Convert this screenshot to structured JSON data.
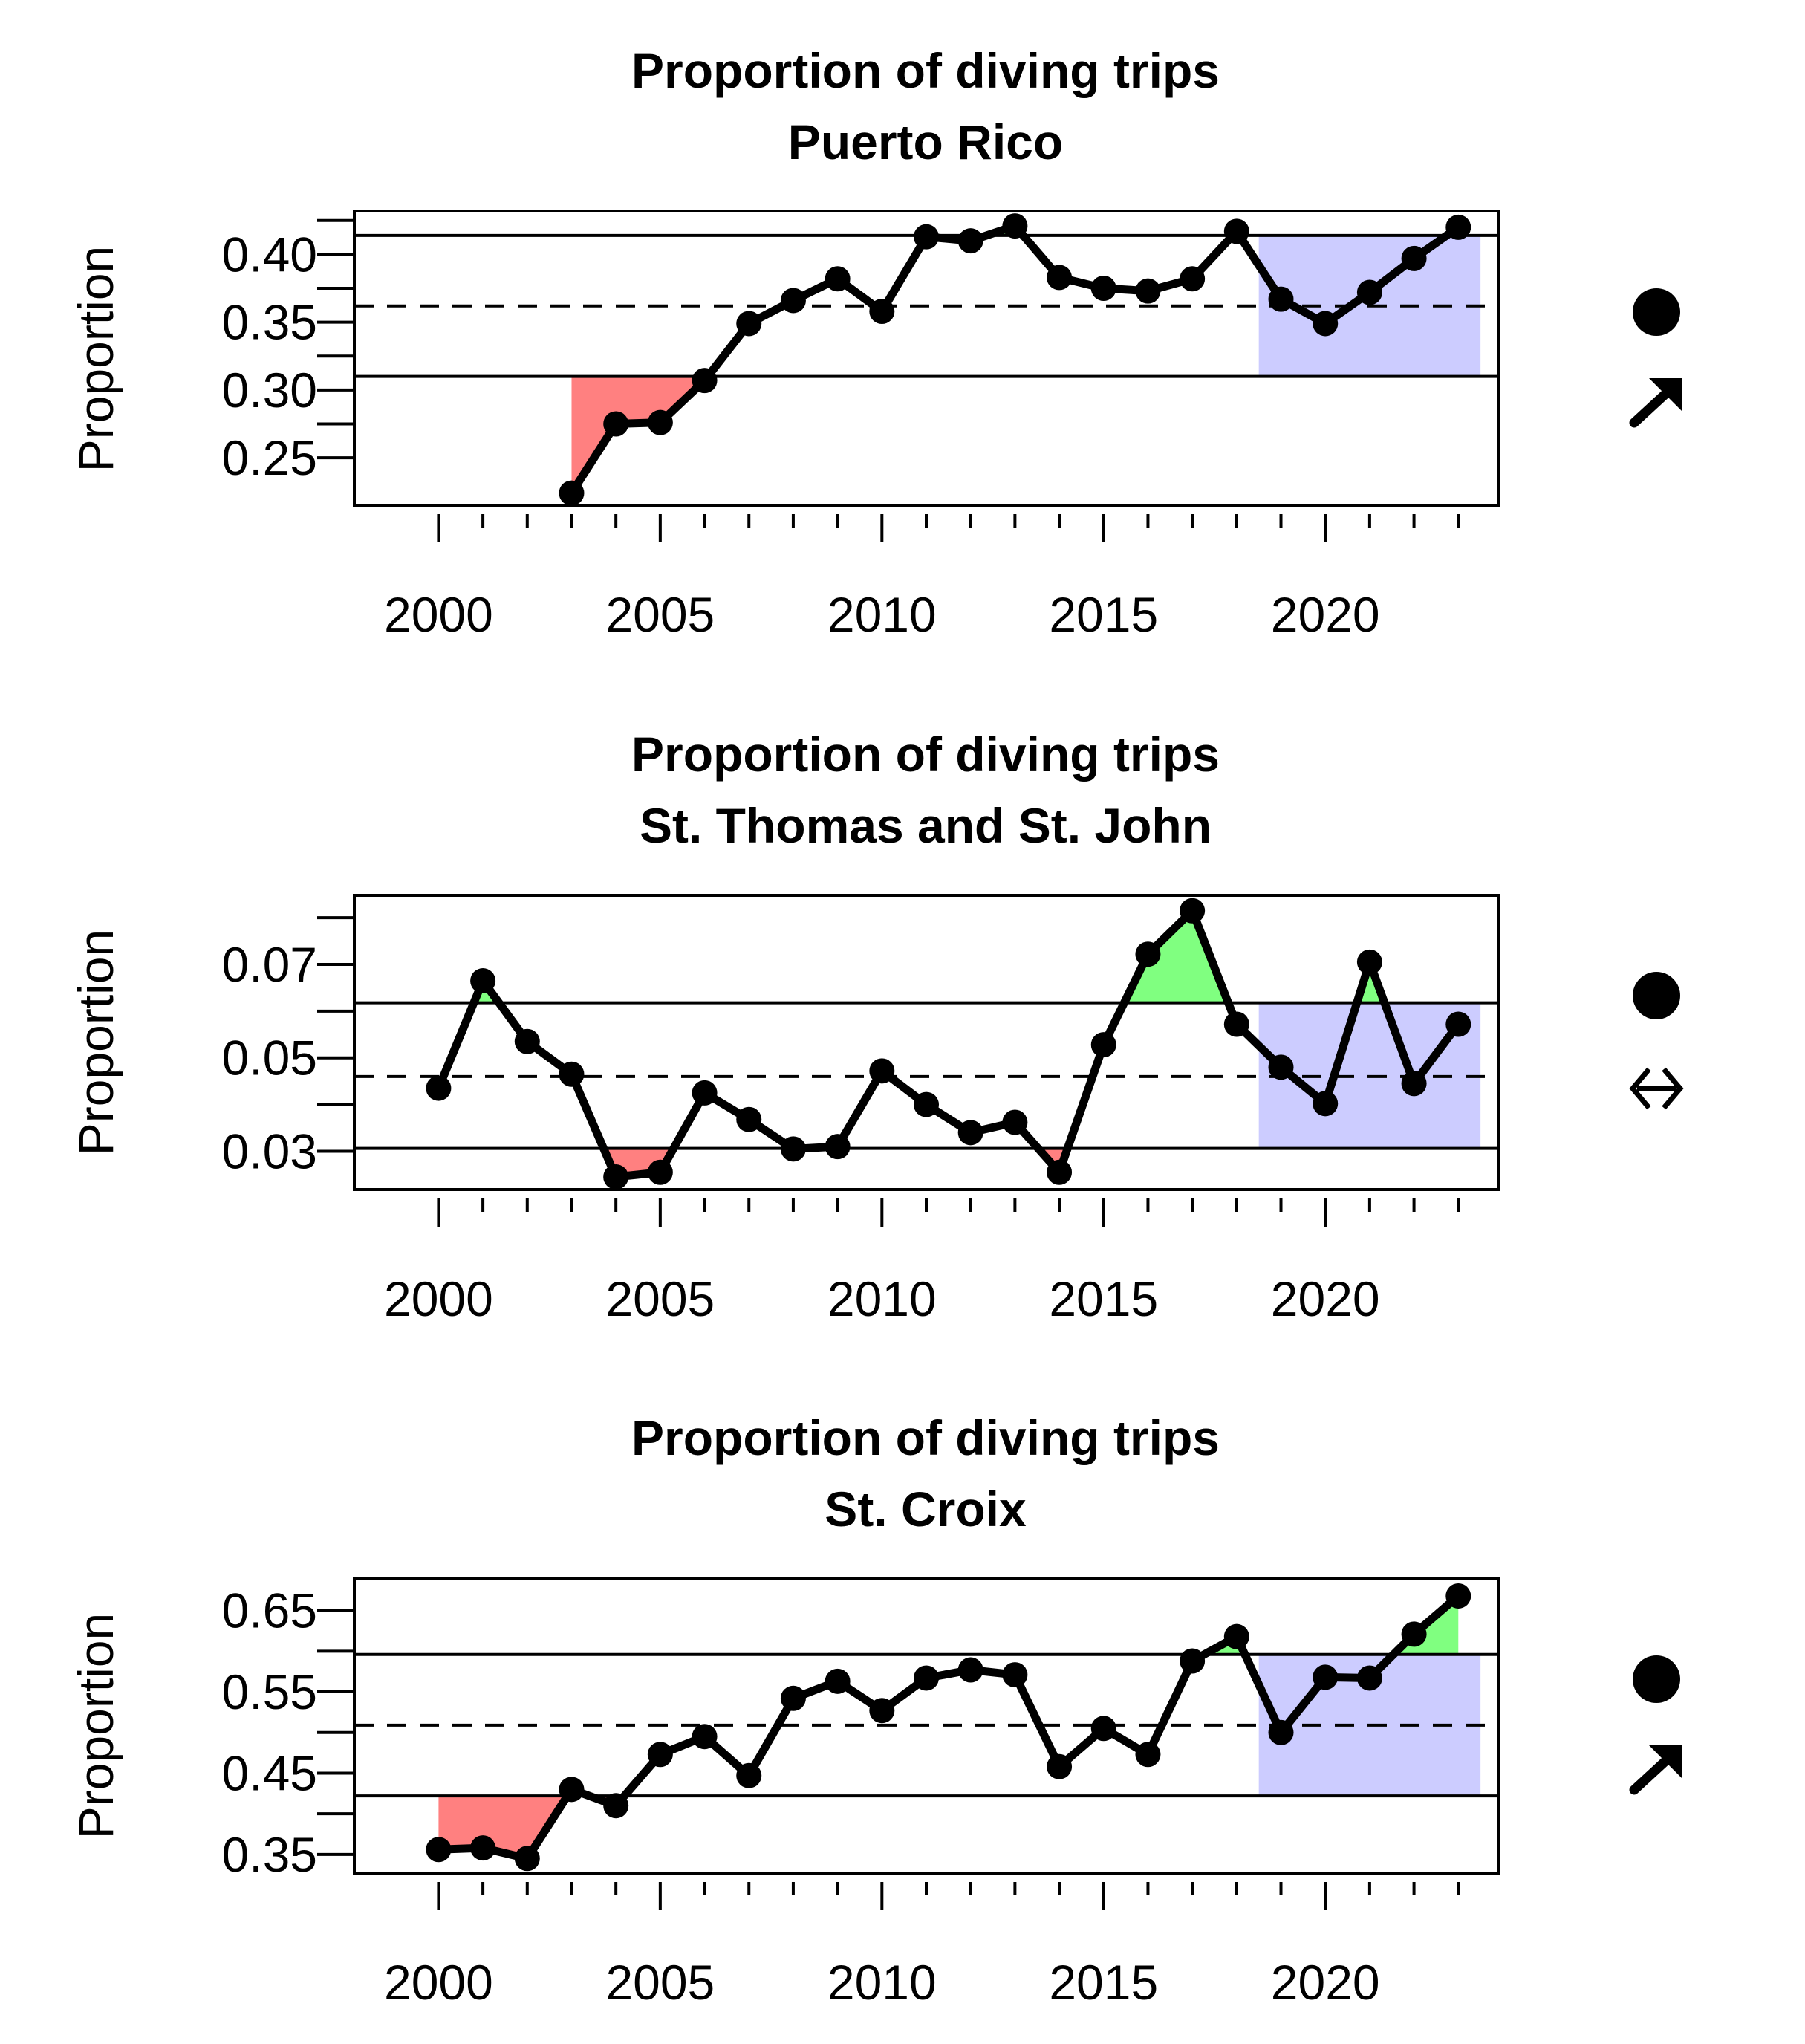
{
  "chart_data": [
    {
      "type": "line",
      "title": "Proportion of diving trips",
      "subtitle": "Puerto Rico",
      "ylabel": "Proportion",
      "xlabel": "",
      "x": [
        2003,
        2004,
        2005,
        2006,
        2007,
        2008,
        2009,
        2010,
        2011,
        2012,
        2013,
        2014,
        2015,
        2016,
        2017,
        2018,
        2019,
        2020,
        2021,
        2022,
        2023
      ],
      "series": [
        {
          "values": [
            0.224,
            0.275,
            0.276,
            0.307,
            0.349,
            0.366,
            0.382,
            0.358,
            0.413,
            0.41,
            0.421,
            0.383,
            0.375,
            0.373,
            0.382,
            0.417,
            0.367,
            0.349,
            0.372,
            0.397,
            0.42
          ]
        }
      ],
      "mean": 0.362,
      "upper": 0.414,
      "lower": 0.31,
      "xlim": [
        1998.1,
        2023.9
      ],
      "ylim": [
        0.215,
        0.432
      ],
      "xticks": [
        2000,
        2005,
        2010,
        2015,
        2020
      ],
      "xminor": [
        2001,
        2002,
        2003,
        2004,
        2006,
        2007,
        2008,
        2009,
        2011,
        2012,
        2013,
        2014,
        2016,
        2017,
        2018,
        2019,
        2021,
        2022,
        2023
      ],
      "yticks": [
        "0.25",
        "0.30",
        "0.35",
        "0.40"
      ],
      "ytick_values": [
        0.25,
        0.3,
        0.35,
        0.4
      ],
      "yminor": [
        0.275,
        0.325,
        0.375,
        0.425
      ],
      "recent_window": [
        2018.5,
        2023.5
      ],
      "status_icons": [
        "filled-circle-icon",
        "arrow-up-right-icon"
      ]
    },
    {
      "type": "line",
      "title": "Proportion of diving trips",
      "subtitle": "St. Thomas and St. John",
      "ylabel": "Proportion",
      "xlabel": "",
      "x": [
        2000,
        2001,
        2002,
        2003,
        2004,
        2005,
        2006,
        2007,
        2008,
        2009,
        2010,
        2011,
        2012,
        2013,
        2014,
        2015,
        2016,
        2017,
        2018,
        2019,
        2020,
        2021,
        2022,
        2023
      ],
      "series": [
        {
          "values": [
            0.0435,
            0.0665,
            0.0535,
            0.0465,
            0.0245,
            0.0255,
            0.0425,
            0.0368,
            0.0305,
            0.031,
            0.0472,
            0.04,
            0.034,
            0.0362,
            0.0255,
            0.0528,
            0.0722,
            0.0815,
            0.0572,
            0.048,
            0.0402,
            0.0705,
            0.0445,
            0.0572
          ]
        }
      ],
      "mean": 0.046,
      "upper": 0.0618,
      "lower": 0.0306,
      "xlim": [
        1998.1,
        2023.9
      ],
      "ylim": [
        0.0218,
        0.0848
      ],
      "xticks": [
        2000,
        2005,
        2010,
        2015,
        2020
      ],
      "xminor": [
        2001,
        2002,
        2003,
        2004,
        2006,
        2007,
        2008,
        2009,
        2011,
        2012,
        2013,
        2014,
        2016,
        2017,
        2018,
        2019,
        2021,
        2022,
        2023
      ],
      "yticks": [
        "0.03",
        "0.05",
        "0.07"
      ],
      "ytick_values": [
        0.03,
        0.05,
        0.07
      ],
      "yminor": [
        0.04,
        0.06,
        0.08
      ],
      "recent_window": [
        2018.5,
        2023.5
      ],
      "status_icons": [
        "filled-circle-icon",
        "double-arrow-horizontal-icon"
      ]
    },
    {
      "type": "line",
      "title": "Proportion of diving trips",
      "subtitle": "St. Croix",
      "ylabel": "Proportion",
      "xlabel": "",
      "x": [
        2000,
        2001,
        2002,
        2003,
        2004,
        2005,
        2006,
        2007,
        2008,
        2009,
        2010,
        2011,
        2012,
        2013,
        2014,
        2015,
        2016,
        2017,
        2018,
        2019,
        2020,
        2021,
        2022,
        2023
      ],
      "series": [
        {
          "values": [
            0.356,
            0.358,
            0.345,
            0.43,
            0.41,
            0.473,
            0.495,
            0.447,
            0.542,
            0.563,
            0.527,
            0.567,
            0.577,
            0.571,
            0.458,
            0.505,
            0.473,
            0.588,
            0.618,
            0.5,
            0.568,
            0.567,
            0.621,
            0.668
          ]
        }
      ],
      "mean": 0.509,
      "upper": 0.596,
      "lower": 0.422,
      "xlim": [
        1998.1,
        2023.9
      ],
      "ylim": [
        0.327,
        0.689
      ],
      "xticks": [
        2000,
        2005,
        2010,
        2015,
        2020
      ],
      "xminor": [
        2001,
        2002,
        2003,
        2004,
        2006,
        2007,
        2008,
        2009,
        2011,
        2012,
        2013,
        2014,
        2016,
        2017,
        2018,
        2019,
        2021,
        2022,
        2023
      ],
      "yticks": [
        "0.35",
        "0.45",
        "0.55",
        "0.65"
      ],
      "ytick_values": [
        0.35,
        0.45,
        0.55,
        0.65
      ],
      "yminor": [
        0.4,
        0.5,
        0.6
      ],
      "recent_window": [
        2018.5,
        2023.5
      ],
      "status_icons": [
        "filled-circle-icon",
        "arrow-up-right-icon"
      ]
    }
  ],
  "colors": {
    "line": "#000000",
    "above_upper_fill": "#80ff80",
    "below_lower_fill": "#ff8080",
    "recent_window_fill": "#ccccff"
  }
}
